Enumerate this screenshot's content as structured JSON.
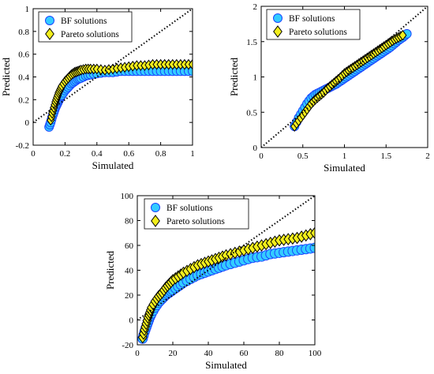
{
  "colors": {
    "bf_fill": "#33ccff",
    "bf_edge": "#1a44ff",
    "pareto_fill": "#f2ee1c",
    "pareto_edge": "#000000",
    "identity_line": "#000000"
  },
  "chart_data": [
    {
      "type": "scatter",
      "title": "",
      "xlabel": "Simulated",
      "ylabel": "Predicted",
      "xlim": [
        0,
        1
      ],
      "ylim": [
        -0.2,
        1
      ],
      "xticks": [
        0,
        0.2,
        0.4,
        0.6,
        0.8,
        1
      ],
      "yticks": [
        -0.2,
        0,
        0.2,
        0.4,
        0.6,
        0.8,
        1
      ],
      "xtick_labels": [
        "0",
        "0.2",
        "0.4",
        "0.6",
        "0.8",
        "1"
      ],
      "ytick_labels": [
        "-0.2",
        "0",
        "0.2",
        "0.4",
        "0.6",
        "0.8",
        "1"
      ],
      "identity_line": true,
      "legend": {
        "position": "top-left",
        "entries": [
          "BF solutions",
          "Pareto solutions"
        ]
      },
      "series": [
        {
          "name": "BF solutions",
          "marker": "circle",
          "x": [
            0.1,
            0.11,
            0.12,
            0.13,
            0.14,
            0.15,
            0.16,
            0.17,
            0.18,
            0.2,
            0.22,
            0.24,
            0.26,
            0.28,
            0.3,
            0.33,
            0.36,
            0.4,
            0.45,
            0.5,
            0.55,
            0.6,
            0.65,
            0.7,
            0.75,
            0.8,
            0.85,
            0.9,
            0.95,
            1.0
          ],
          "y": [
            -0.04,
            0.0,
            0.05,
            0.09,
            0.13,
            0.16,
            0.19,
            0.22,
            0.24,
            0.28,
            0.31,
            0.34,
            0.36,
            0.38,
            0.39,
            0.41,
            0.42,
            0.43,
            0.44,
            0.44,
            0.45,
            0.45,
            0.45,
            0.45,
            0.45,
            0.45,
            0.45,
            0.45,
            0.45,
            0.45
          ]
        },
        {
          "name": "Pareto solutions",
          "marker": "diamond",
          "x": [
            0.11,
            0.12,
            0.13,
            0.14,
            0.15,
            0.16,
            0.17,
            0.18,
            0.2,
            0.22,
            0.24,
            0.26,
            0.28,
            0.3,
            0.33,
            0.36,
            0.4,
            0.45,
            0.5,
            0.55,
            0.6,
            0.65,
            0.7,
            0.75,
            0.8,
            0.85,
            0.9,
            0.95,
            1.0
          ],
          "y": [
            0.02,
            0.08,
            0.13,
            0.18,
            0.22,
            0.26,
            0.29,
            0.32,
            0.36,
            0.39,
            0.42,
            0.44,
            0.45,
            0.46,
            0.47,
            0.47,
            0.47,
            0.46,
            0.47,
            0.48,
            0.49,
            0.5,
            0.5,
            0.51,
            0.51,
            0.51,
            0.51,
            0.51,
            0.51
          ]
        }
      ]
    },
    {
      "type": "scatter",
      "title": "",
      "xlabel": "Simulated",
      "ylabel": "Predicted",
      "xlim": [
        0,
        2
      ],
      "ylim": [
        0,
        2
      ],
      "xticks": [
        0,
        0.5,
        1,
        1.5,
        2
      ],
      "yticks": [
        0,
        0.5,
        1,
        1.5,
        2
      ],
      "xtick_labels": [
        "0",
        "0.5",
        "1",
        "1.5",
        "2"
      ],
      "ytick_labels": [
        "0",
        "0.5",
        "1",
        "1.5",
        "2"
      ],
      "identity_line": true,
      "legend": {
        "position": "top-left",
        "entries": [
          "BF solutions",
          "Pareto solutions"
        ]
      },
      "series": [
        {
          "name": "BF solutions",
          "marker": "circle",
          "x": [
            0.4,
            0.45,
            0.5,
            0.55,
            0.6,
            0.65,
            0.7,
            0.75,
            0.8,
            0.85,
            0.9,
            0.95,
            1.0,
            1.05,
            1.1,
            1.15,
            1.2,
            1.25,
            1.3,
            1.35,
            1.4,
            1.45,
            1.5,
            1.55,
            1.6,
            1.65,
            1.7,
            1.75
          ],
          "y": [
            0.3,
            0.42,
            0.52,
            0.62,
            0.7,
            0.75,
            0.78,
            0.81,
            0.84,
            0.87,
            0.9,
            0.94,
            0.98,
            1.02,
            1.06,
            1.1,
            1.14,
            1.18,
            1.22,
            1.26,
            1.3,
            1.34,
            1.38,
            1.42,
            1.47,
            1.52,
            1.56,
            1.61
          ]
        },
        {
          "name": "Pareto solutions",
          "marker": "diamond",
          "x": [
            0.4,
            0.45,
            0.5,
            0.55,
            0.6,
            0.65,
            0.7,
            0.75,
            0.8,
            0.85,
            0.9,
            0.95,
            1.0,
            1.05,
            1.1,
            1.15,
            1.2,
            1.25,
            1.3,
            1.35,
            1.4,
            1.45,
            1.5,
            1.55,
            1.6,
            1.65,
            1.7
          ],
          "y": [
            0.3,
            0.38,
            0.46,
            0.54,
            0.62,
            0.68,
            0.73,
            0.78,
            0.84,
            0.89,
            0.94,
            0.99,
            1.05,
            1.09,
            1.13,
            1.17,
            1.21,
            1.25,
            1.29,
            1.33,
            1.37,
            1.41,
            1.45,
            1.49,
            1.53,
            1.56,
            1.59
          ]
        }
      ]
    },
    {
      "type": "scatter",
      "title": "",
      "xlabel": "Simulated",
      "ylabel": "Predicted",
      "xlim": [
        0,
        100
      ],
      "ylim": [
        -20,
        100
      ],
      "xticks": [
        0,
        20,
        40,
        60,
        80,
        100
      ],
      "yticks": [
        -20,
        0,
        20,
        40,
        60,
        80,
        100
      ],
      "xtick_labels": [
        "0",
        "20",
        "40",
        "60",
        "80",
        "100"
      ],
      "ytick_labels": [
        "-20",
        "0",
        "20",
        "40",
        "60",
        "80",
        "100"
      ],
      "identity_line": true,
      "legend": {
        "position": "top-left",
        "entries": [
          "BF solutions",
          "Pareto solutions"
        ]
      },
      "series": [
        {
          "name": "BF solutions",
          "marker": "circle",
          "x": [
            3,
            4,
            5,
            6,
            7,
            8,
            10,
            12,
            14,
            16,
            18,
            20,
            23,
            26,
            30,
            34,
            38,
            42,
            46,
            50,
            55,
            60,
            65,
            70,
            75,
            80,
            85,
            90,
            95,
            100
          ],
          "y": [
            -15,
            -10,
            -6,
            -2,
            2,
            5,
            10,
            14,
            17,
            20,
            22,
            24,
            27,
            30,
            33,
            36,
            38,
            40,
            42,
            44,
            46,
            48,
            50,
            51,
            53,
            54,
            55,
            56,
            57,
            58
          ]
        },
        {
          "name": "Pareto solutions",
          "marker": "diamond",
          "x": [
            3,
            4,
            5,
            6,
            7,
            8,
            10,
            12,
            14,
            16,
            18,
            20,
            23,
            26,
            30,
            34,
            38,
            42,
            46,
            50,
            55,
            60,
            65,
            70,
            75,
            80,
            85,
            90,
            95,
            100
          ],
          "y": [
            -14,
            -8,
            -3,
            2,
            6,
            10,
            15,
            19,
            22,
            26,
            29,
            32,
            35,
            38,
            41,
            44,
            46,
            48,
            50,
            52,
            54,
            56,
            58,
            60,
            62,
            64,
            65,
            66,
            68,
            70
          ]
        }
      ]
    }
  ]
}
